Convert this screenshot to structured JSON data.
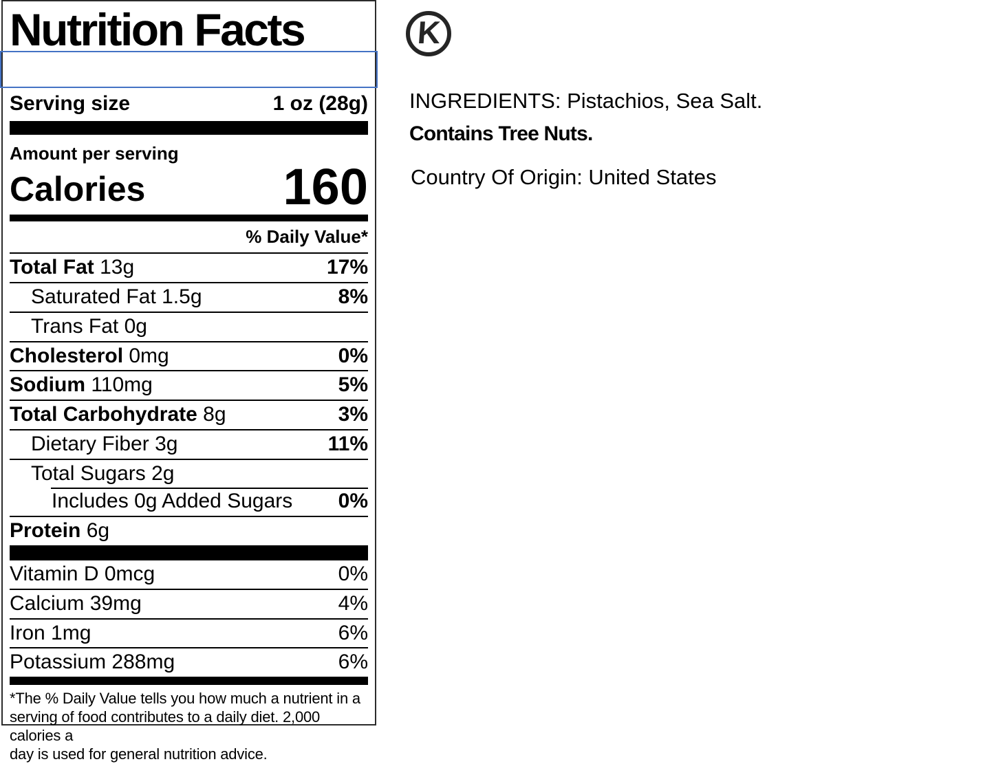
{
  "label": {
    "title": "Nutrition Facts",
    "servings_input": {
      "value": ""
    },
    "serving_size": {
      "label": "Serving size",
      "value": "1 oz (28g)"
    },
    "amount_per_serving": "Amount per serving",
    "calories": {
      "label": "Calories",
      "value": "160"
    },
    "daily_value_header": "% Daily Value*",
    "nutrients": [
      {
        "name": "Total Fat",
        "amount": "13g",
        "dv": "17%"
      },
      {
        "name": "Saturated Fat",
        "amount": "1.5g",
        "dv": "8%"
      },
      {
        "name": "Trans Fat",
        "amount": "0g",
        "dv": ""
      },
      {
        "name": "Cholesterol",
        "amount": "0mg",
        "dv": "0%"
      },
      {
        "name": "Sodium",
        "amount": "110mg",
        "dv": "5%"
      },
      {
        "name": "Total Carbohydrate",
        "amount": "8g",
        "dv": "3%"
      },
      {
        "name": "Dietary Fiber",
        "amount": "3g",
        "dv": "11%"
      },
      {
        "name": "Total Sugars",
        "amount": "2g",
        "dv": ""
      },
      {
        "name": "Includes 0g Added Sugars",
        "amount": "",
        "dv": "0%"
      },
      {
        "name": "Protein",
        "amount": "6g",
        "dv": ""
      }
    ],
    "micronutrients": [
      {
        "name": "Vitamin D",
        "amount": "0mcg",
        "dv": "0%"
      },
      {
        "name": "Calcium",
        "amount": "39mg",
        "dv": "4%"
      },
      {
        "name": "Iron",
        "amount": "1mg",
        "dv": "6%"
      },
      {
        "name": "Potassium",
        "amount": "288mg",
        "dv": "6%"
      }
    ],
    "footnote_lines": [
      "*The % Daily Value tells you how much a nutrient in a",
      "serving of food contributes to a daily diet. 2,000 calories a",
      "day is used for general nutrition advice."
    ]
  },
  "side_panel": {
    "kosher_symbol": "K",
    "ingredients": "INGREDIENTS: Pistachios, Sea Salt.",
    "allergen": "Contains Tree Nuts.",
    "country_of_origin": "Country Of Origin: United States"
  },
  "colors": {
    "selection_border": "#4472C4",
    "label_border": "#2b2b2b",
    "text": "#000000"
  }
}
